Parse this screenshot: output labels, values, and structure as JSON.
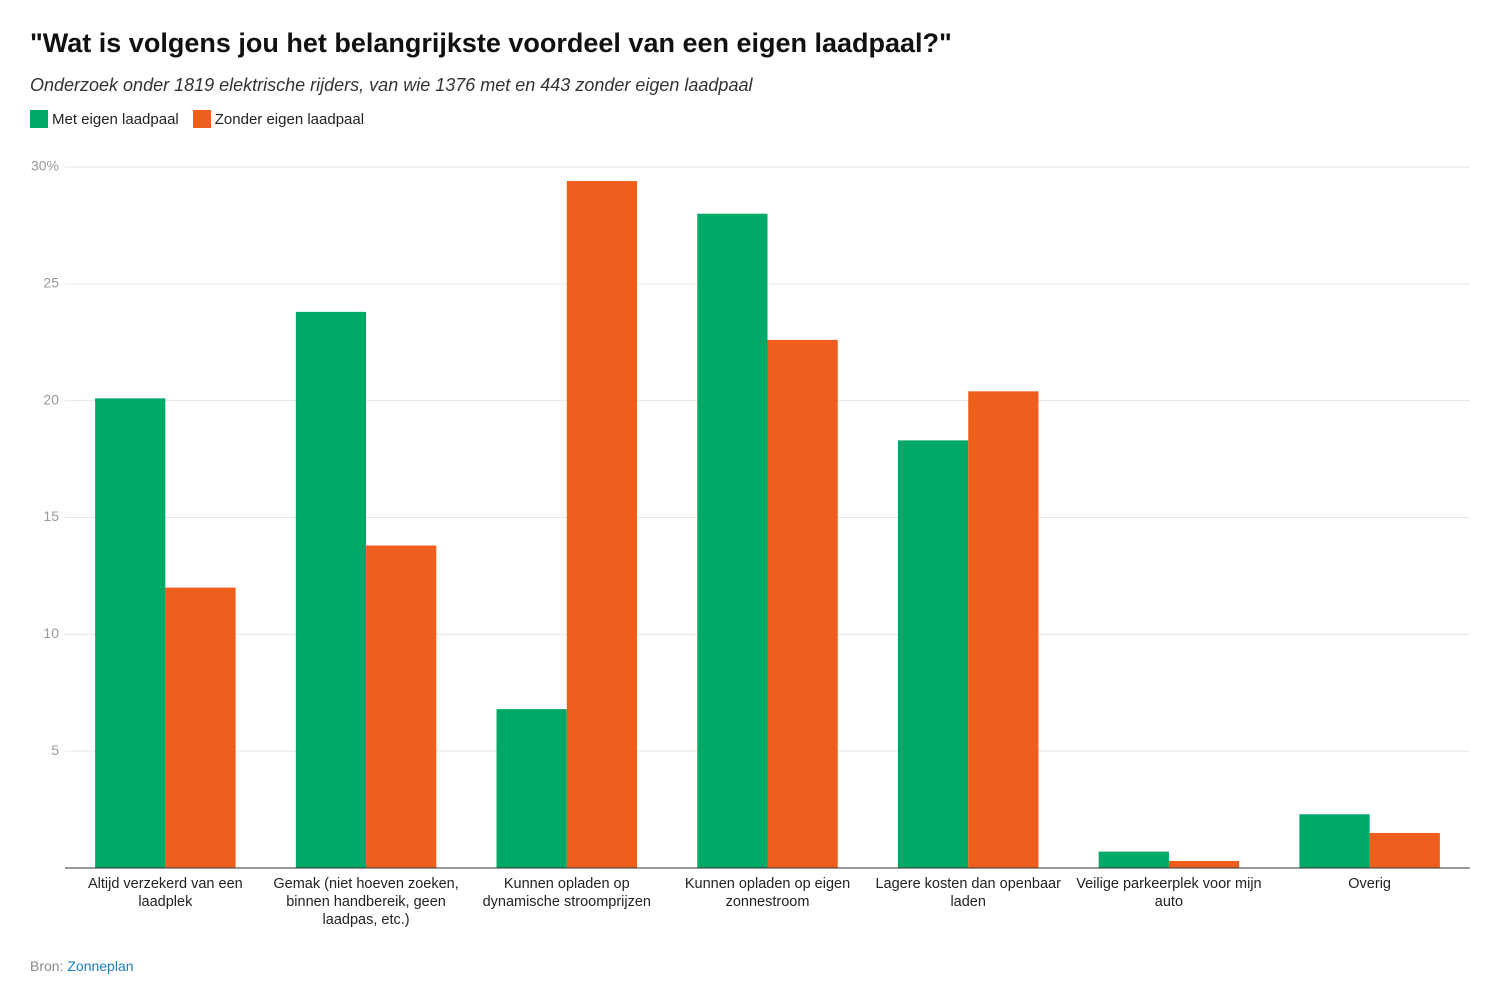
{
  "chart_data": {
    "type": "bar",
    "title": "\"Wat is volgens jou het belangrijkste voordeel van een eigen laadpaal?\"",
    "subtitle": "Onderzoek onder 1819 elektrische rijders, van wie 1376 met en 443 zonder eigen laadpaal",
    "categories": [
      "Altijd verzekerd van een laadplek",
      "Gemak (niet hoeven zoeken, binnen handbereik, geen laadpas, etc.)",
      "Kunnen opladen op dynamische stroomprijzen",
      "Kunnen opladen op eigen zonnestroom",
      "Lagere kosten dan openbaar laden",
      "Veilige parkeerplek voor mijn auto",
      "Overig"
    ],
    "series": [
      {
        "name": "Met eigen laadpaal",
        "color": "#00a968",
        "values": [
          20.1,
          23.8,
          6.8,
          28.0,
          18.3,
          0.7,
          2.3
        ]
      },
      {
        "name": "Zonder eigen laadpaal",
        "color": "#ee5f1e",
        "values": [
          12.0,
          13.8,
          29.4,
          22.6,
          20.4,
          0.3,
          1.5
        ]
      }
    ],
    "ylim": [
      0,
      30
    ],
    "yticks": [
      5,
      10,
      15,
      20,
      25,
      {
        "value": 30,
        "label": "30%"
      }
    ],
    "grid": true,
    "source": {
      "label": "Bron:",
      "name": "Zonneplan"
    }
  }
}
